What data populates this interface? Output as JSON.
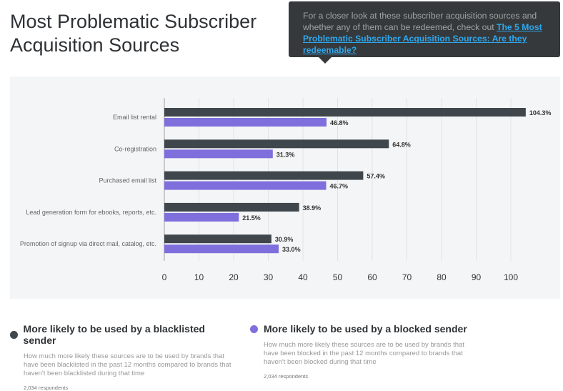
{
  "header": {
    "title_line1": "Most Problematic Subscriber",
    "title_line2": "Acquisition Sources"
  },
  "tooltip": {
    "text": "For a closer look at these subscriber acquisition sources and whether any of them can be redeemed, check out ",
    "link": "The 5 Most Problematic Subscriber Acquisition Sources: Are they redeemable?"
  },
  "chart_data": {
    "type": "bar",
    "orientation": "horizontal",
    "categories": [
      "Email list rental",
      "Co-registration",
      "Purchased email list",
      "Lead generation form for ebooks, reports, etc.",
      "Promotion of signup via direct mail, catalog, etc."
    ],
    "series": [
      {
        "name": "More likely to be used by a blacklisted sender",
        "color": "#3f474c",
        "values": [
          104.3,
          64.8,
          57.4,
          38.9,
          30.9
        ]
      },
      {
        "name": "More likely to be used by a blocked sender",
        "color": "#7e6fdc",
        "values": [
          46.8,
          31.3,
          46.7,
          21.5,
          33.0
        ]
      }
    ],
    "xlim": [
      0,
      100
    ],
    "xticks": [
      0,
      10,
      20,
      30,
      40,
      50,
      60,
      70,
      80,
      90,
      100
    ],
    "grid": true,
    "legend": "bottom"
  },
  "legend": [
    {
      "title": "More likely to be used by a blacklisted sender",
      "desc": "How much more likely these sources are to be used by brands that have been blacklisted in the past 12 months compared to brands that haven't been blacklisted during that time",
      "respondents": "2,034 respondents"
    },
    {
      "title": "More likely to be used by a blocked sender",
      "desc": "How much more likely these sources are to be used by brands that have been blocked in the past 12 months compared to brands that haven't been blocked during that time",
      "respondents": "2,034 respondents"
    }
  ]
}
